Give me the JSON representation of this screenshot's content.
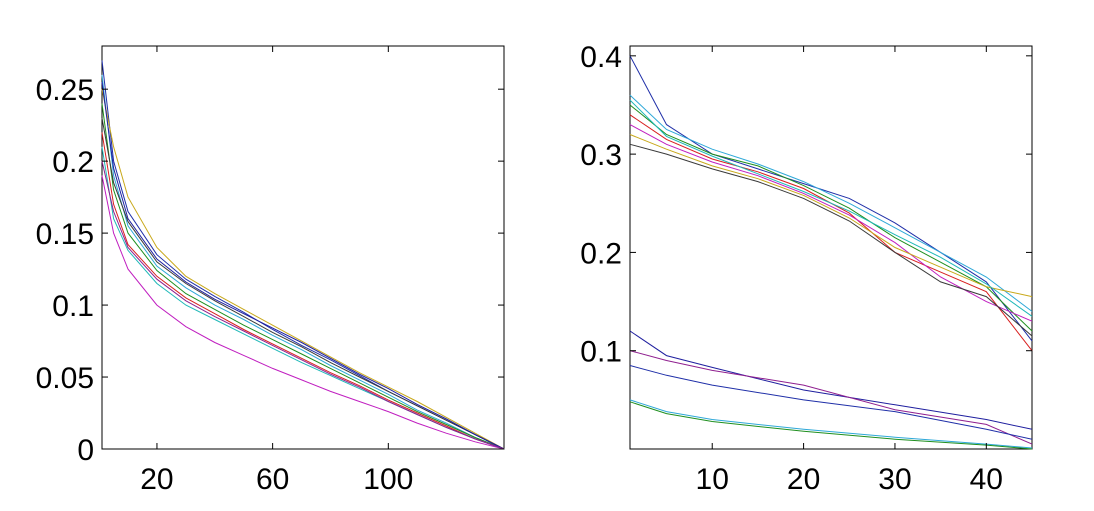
{
  "colors": [
    "#1f2fa8",
    "#2ea8d8",
    "#1f8f1f",
    "#d81f1f",
    "#c01fc0",
    "#c8a81a",
    "#3a3a3a",
    "#1fb8b8",
    "#1f1f9f",
    "#8f1f8f"
  ],
  "chart_data": [
    {
      "type": "line",
      "title": "",
      "xlabel": "",
      "ylabel": "",
      "xlim": [
        1,
        140
      ],
      "ylim": [
        0,
        0.28
      ],
      "xticks": [
        20,
        60,
        100
      ],
      "yticks": [
        0,
        0.05,
        0.1,
        0.15,
        0.2,
        0.25
      ],
      "ytick_labels": [
        "0",
        "0.05",
        "0.1",
        "0.15",
        "0.2",
        "0.25"
      ],
      "xtick_labels": [
        "20",
        "60",
        "100"
      ],
      "grid": false,
      "legend": "none",
      "series": [
        {
          "x": [
            1,
            5,
            10,
            20,
            30,
            40,
            50,
            60,
            70,
            80,
            90,
            100,
            110,
            120,
            130,
            140
          ],
          "y": [
            0.27,
            0.2,
            0.165,
            0.135,
            0.118,
            0.106,
            0.095,
            0.083,
            0.072,
            0.062,
            0.051,
            0.04,
            0.03,
            0.02,
            0.01,
            0.0
          ]
        },
        {
          "x": [
            1,
            5,
            10,
            20,
            30,
            40,
            50,
            60,
            70,
            80,
            90,
            100,
            110,
            120,
            130,
            140
          ],
          "y": [
            0.26,
            0.19,
            0.155,
            0.127,
            0.112,
            0.1,
            0.09,
            0.079,
            0.069,
            0.058,
            0.048,
            0.038,
            0.027,
            0.018,
            0.008,
            0.0
          ]
        },
        {
          "x": [
            1,
            5,
            10,
            20,
            30,
            40,
            50,
            60,
            70,
            80,
            90,
            100,
            110,
            120,
            130,
            140
          ],
          "y": [
            0.24,
            0.18,
            0.15,
            0.124,
            0.108,
            0.097,
            0.086,
            0.076,
            0.066,
            0.056,
            0.046,
            0.036,
            0.026,
            0.017,
            0.008,
            0.0
          ]
        },
        {
          "x": [
            1,
            5,
            10,
            20,
            30,
            40,
            50,
            60,
            70,
            80,
            90,
            100,
            110,
            120,
            130,
            140
          ],
          "y": [
            0.22,
            0.17,
            0.142,
            0.12,
            0.105,
            0.094,
            0.083,
            0.073,
            0.063,
            0.053,
            0.044,
            0.034,
            0.025,
            0.016,
            0.007,
            0.0
          ]
        },
        {
          "x": [
            1,
            5,
            10,
            20,
            30,
            40,
            50,
            60,
            70,
            80,
            90,
            100,
            110,
            120,
            130,
            140
          ],
          "y": [
            0.19,
            0.15,
            0.125,
            0.1,
            0.085,
            0.074,
            0.065,
            0.056,
            0.048,
            0.04,
            0.033,
            0.026,
            0.018,
            0.011,
            0.005,
            0.0
          ]
        },
        {
          "x": [
            1,
            5,
            10,
            20,
            30,
            40,
            50,
            60,
            70,
            80,
            90,
            100,
            110,
            120,
            130,
            140
          ],
          "y": [
            0.25,
            0.21,
            0.175,
            0.14,
            0.12,
            0.108,
            0.097,
            0.086,
            0.075,
            0.064,
            0.053,
            0.043,
            0.033,
            0.022,
            0.011,
            0.0
          ]
        },
        {
          "x": [
            1,
            5,
            10,
            20,
            30,
            40,
            50,
            60,
            70,
            80,
            90,
            100,
            110,
            120,
            130,
            140
          ],
          "y": [
            0.23,
            0.185,
            0.158,
            0.13,
            0.115,
            0.103,
            0.092,
            0.081,
            0.071,
            0.06,
            0.05,
            0.04,
            0.03,
            0.02,
            0.01,
            0.0
          ]
        },
        {
          "x": [
            1,
            5,
            10,
            20,
            30,
            40,
            50,
            60,
            70,
            80,
            90,
            100,
            110,
            120,
            130,
            140
          ],
          "y": [
            0.21,
            0.16,
            0.138,
            0.115,
            0.1,
            0.09,
            0.08,
            0.07,
            0.06,
            0.051,
            0.042,
            0.033,
            0.024,
            0.015,
            0.007,
            0.0
          ]
        },
        {
          "x": [
            1,
            5,
            10,
            20,
            30,
            40,
            50,
            60,
            70,
            80,
            90,
            100,
            110,
            120,
            130,
            140
          ],
          "y": [
            0.255,
            0.195,
            0.16,
            0.132,
            0.116,
            0.104,
            0.094,
            0.084,
            0.074,
            0.063,
            0.052,
            0.042,
            0.031,
            0.021,
            0.01,
            0.0
          ]
        },
        {
          "x": [
            1,
            5,
            10,
            20,
            30,
            40,
            50,
            60,
            70,
            80,
            90,
            100,
            110,
            120,
            130,
            140
          ],
          "y": [
            0.2,
            0.165,
            0.14,
            0.118,
            0.103,
            0.092,
            0.082,
            0.072,
            0.062,
            0.052,
            0.043,
            0.033,
            0.024,
            0.015,
            0.007,
            0.0
          ]
        }
      ]
    },
    {
      "type": "line",
      "title": "",
      "xlabel": "",
      "ylabel": "",
      "xlim": [
        1,
        45
      ],
      "ylim": [
        0,
        0.41
      ],
      "xticks": [
        10,
        20,
        30,
        40
      ],
      "yticks": [
        0.1,
        0.2,
        0.3,
        0.4
      ],
      "ytick_labels": [
        "0.1",
        "0.2",
        "0.3",
        "0.4"
      ],
      "xtick_labels": [
        "10",
        "20",
        "30",
        "40"
      ],
      "grid": false,
      "legend": "none",
      "series": [
        {
          "x": [
            1,
            5,
            10,
            15,
            20,
            25,
            30,
            35,
            40,
            45
          ],
          "y": [
            0.4,
            0.33,
            0.3,
            0.285,
            0.27,
            0.255,
            0.23,
            0.2,
            0.17,
            0.11
          ]
        },
        {
          "x": [
            1,
            5,
            10,
            15,
            20,
            25,
            30,
            35,
            40,
            45
          ],
          "y": [
            0.36,
            0.325,
            0.305,
            0.29,
            0.272,
            0.25,
            0.225,
            0.2,
            0.175,
            0.14
          ]
        },
        {
          "x": [
            1,
            5,
            10,
            15,
            20,
            25,
            30,
            35,
            40,
            45
          ],
          "y": [
            0.35,
            0.32,
            0.3,
            0.288,
            0.268,
            0.245,
            0.215,
            0.19,
            0.165,
            0.12
          ]
        },
        {
          "x": [
            1,
            5,
            10,
            15,
            20,
            25,
            30,
            35,
            40,
            45
          ],
          "y": [
            0.34,
            0.315,
            0.295,
            0.282,
            0.265,
            0.24,
            0.2,
            0.18,
            0.16,
            0.1
          ]
        },
        {
          "x": [
            1,
            5,
            10,
            15,
            20,
            25,
            30,
            35,
            40,
            45
          ],
          "y": [
            0.33,
            0.31,
            0.292,
            0.278,
            0.26,
            0.238,
            0.21,
            0.175,
            0.15,
            0.13
          ]
        },
        {
          "x": [
            1,
            5,
            10,
            15,
            20,
            25,
            30,
            35,
            40,
            45
          ],
          "y": [
            0.32,
            0.305,
            0.288,
            0.275,
            0.258,
            0.235,
            0.205,
            0.185,
            0.165,
            0.155
          ]
        },
        {
          "x": [
            1,
            5,
            10,
            15,
            20,
            25,
            30,
            35,
            40,
            45
          ],
          "y": [
            0.31,
            0.3,
            0.285,
            0.272,
            0.255,
            0.232,
            0.2,
            0.17,
            0.155,
            0.115
          ]
        },
        {
          "x": [
            1,
            5,
            10,
            15,
            20,
            25,
            30,
            35,
            40,
            45
          ],
          "y": [
            0.355,
            0.318,
            0.298,
            0.28,
            0.262,
            0.242,
            0.218,
            0.195,
            0.168,
            0.135
          ]
        },
        {
          "x": [
            1,
            5,
            10,
            20,
            30,
            40,
            45
          ],
          "y": [
            0.12,
            0.095,
            0.083,
            0.06,
            0.045,
            0.03,
            0.02
          ]
        },
        {
          "x": [
            1,
            5,
            10,
            20,
            30,
            40,
            45
          ],
          "y": [
            0.1,
            0.09,
            0.08,
            0.065,
            0.04,
            0.025,
            0.005
          ]
        },
        {
          "x": [
            1,
            5,
            10,
            20,
            30,
            40,
            45
          ],
          "y": [
            0.085,
            0.075,
            0.065,
            0.05,
            0.038,
            0.02,
            0.01
          ]
        },
        {
          "x": [
            1,
            5,
            10,
            20,
            30,
            40,
            45
          ],
          "y": [
            0.05,
            0.038,
            0.03,
            0.02,
            0.012,
            0.005,
            0.001
          ]
        },
        {
          "x": [
            1,
            5,
            10,
            20,
            30,
            40,
            45
          ],
          "y": [
            0.048,
            0.036,
            0.028,
            0.018,
            0.01,
            0.004,
            0.0
          ]
        }
      ]
    }
  ]
}
